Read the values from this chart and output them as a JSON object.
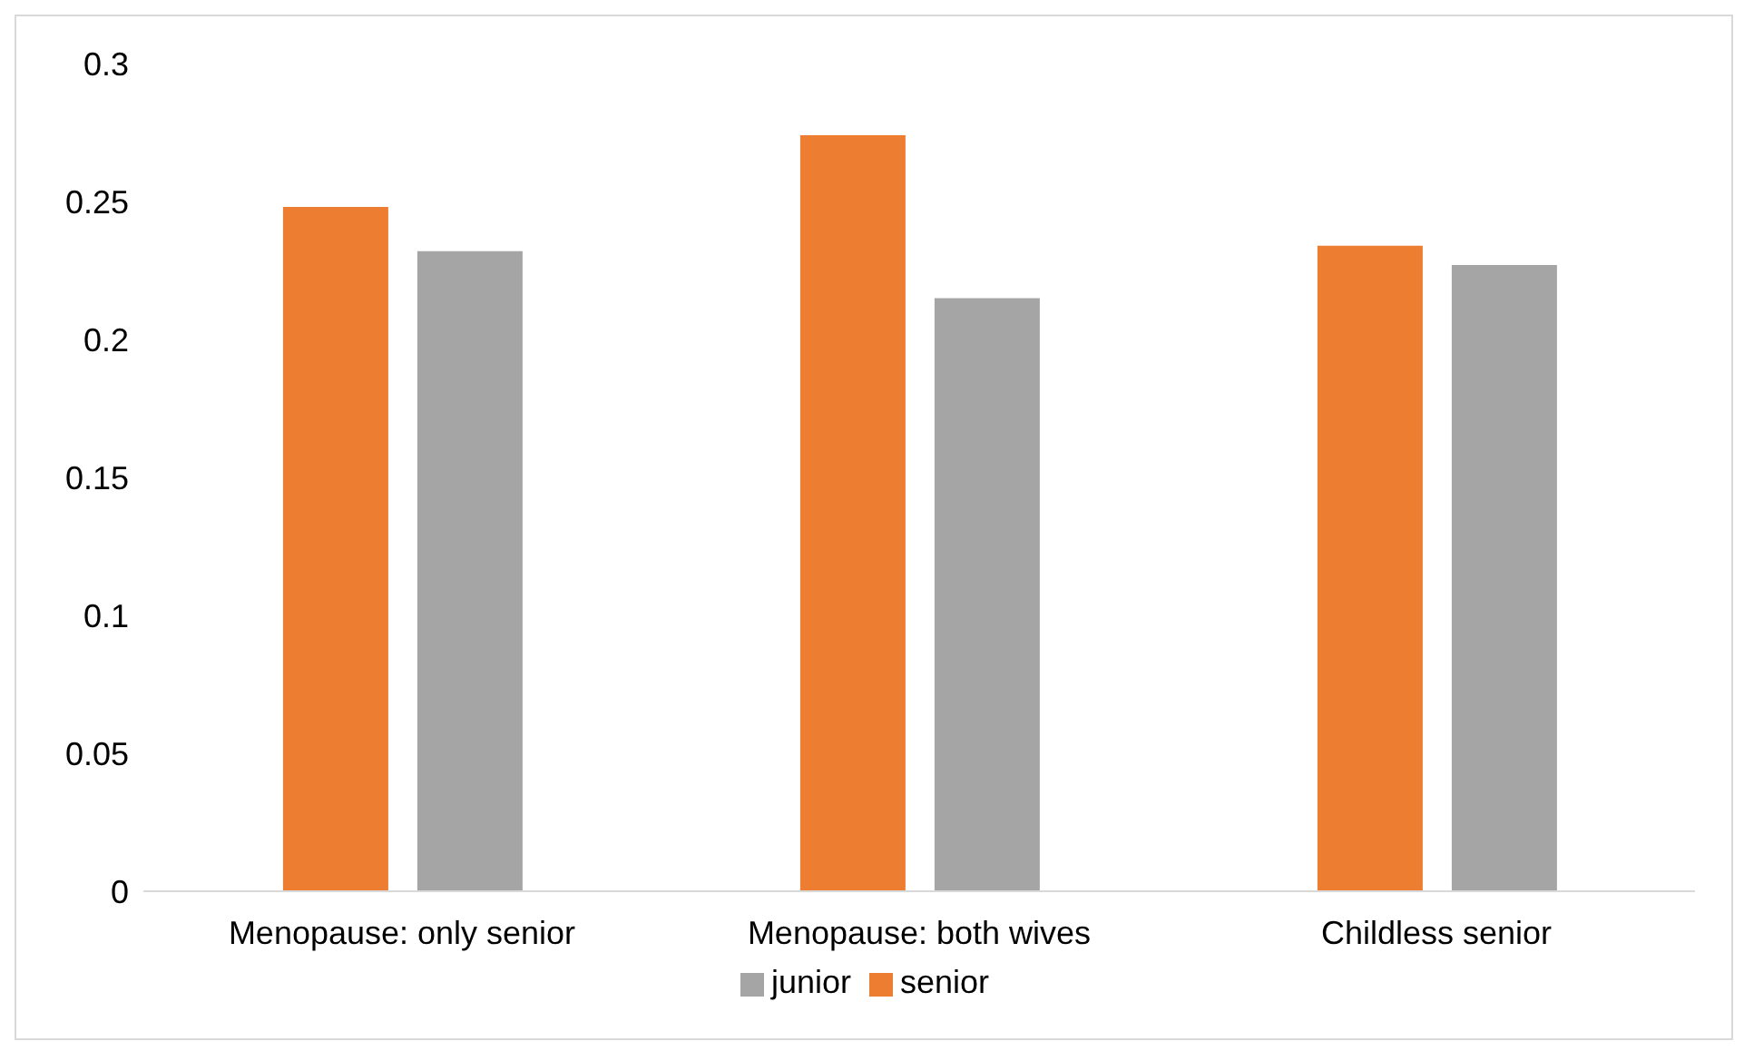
{
  "chart_data": {
    "type": "bar",
    "categories": [
      "Menopause: only senior",
      "Menopause: both wives",
      "Childless senior"
    ],
    "series": [
      {
        "name": "senior",
        "color": "#ed7d31",
        "values": [
          0.248,
          0.274,
          0.234
        ]
      },
      {
        "name": "junior",
        "color": "#a5a5a5",
        "values": [
          0.232,
          0.215,
          0.227
        ]
      }
    ],
    "ylim": [
      0,
      0.3
    ],
    "yticks": [
      0,
      0.05,
      0.1,
      0.15,
      0.2,
      0.25,
      0.3
    ],
    "grid": false,
    "legend": "bottom"
  }
}
